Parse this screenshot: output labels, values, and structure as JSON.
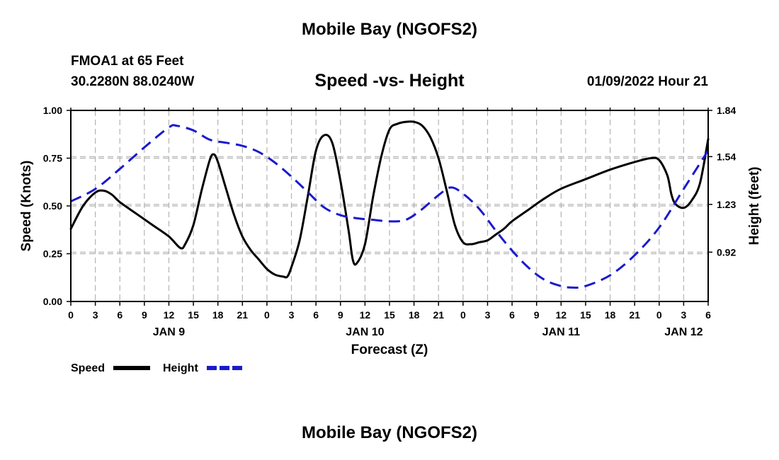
{
  "header": {
    "title": "Mobile Bay (NGOFS2)",
    "station": "FMOA1 at 65 Feet",
    "coords": "30.2280N  88.0240W",
    "timestamp": "01/09/2022 Hour 21",
    "footer_title": "Mobile Bay (NGOFS2)"
  },
  "chart_data": {
    "type": "line",
    "title": "Speed -vs- Height",
    "xlabel": "Forecast (Z)",
    "ylabel": "Speed (Knots)",
    "y2label": "Height (feet)",
    "xlim": [
      0,
      78
    ],
    "ylim": [
      0,
      1
    ],
    "y2lim": [
      0.6,
      1.84
    ],
    "grid": true,
    "legend_position": "bottom-left",
    "x_ticks": [
      0,
      3,
      6,
      9,
      12,
      15,
      18,
      21,
      24,
      27,
      30,
      33,
      36,
      39,
      42,
      45,
      48,
      51,
      54,
      57,
      60,
      63,
      66,
      69,
      72,
      75,
      78
    ],
    "x_tick_labels": [
      "0",
      "3",
      "6",
      "9",
      "12",
      "15",
      "18",
      "21",
      "0",
      "3",
      "6",
      "9",
      "12",
      "15",
      "18",
      "21",
      "0",
      "3",
      "6",
      "9",
      "12",
      "15",
      "18",
      "21",
      "0",
      "3",
      "6"
    ],
    "y_ticks": [
      0,
      0.25,
      0.5,
      0.75,
      1.0
    ],
    "y_tick_labels": [
      "0.00",
      "0.25",
      "0.50",
      "0.75",
      "1.00"
    ],
    "y2_ticks": [
      0.92,
      1.23,
      1.54,
      1.84
    ],
    "y2_tick_labels": [
      "0.92",
      "1.23",
      "1.54",
      "1.84"
    ],
    "day_labels": [
      {
        "x": 12,
        "label": "JAN 9"
      },
      {
        "x": 36,
        "label": "JAN 10"
      },
      {
        "x": 60,
        "label": "JAN 11"
      },
      {
        "x": 75,
        "label": "JAN 12"
      }
    ],
    "series": [
      {
        "name": "Speed",
        "axis": "left",
        "color": "#000000",
        "style": "solid",
        "x": [
          0,
          1.5,
          3,
          4,
          5,
          6,
          8,
          10,
          12,
          13.4,
          14,
          15,
          16,
          17,
          17.5,
          18,
          19,
          20,
          21,
          22,
          23,
          24,
          25,
          26,
          26.5,
          27,
          28,
          29,
          30,
          31,
          32,
          33,
          34,
          34.5,
          35,
          36,
          37,
          38,
          39,
          40,
          41,
          42,
          43,
          44,
          45,
          46,
          47,
          48,
          49,
          50,
          51,
          52,
          53,
          54,
          56,
          58,
          60,
          63,
          66,
          69,
          71,
          72,
          73,
          73.5,
          74,
          75,
          76,
          77,
          78
        ],
        "y": [
          0.38,
          0.5,
          0.57,
          0.58,
          0.56,
          0.52,
          0.46,
          0.4,
          0.34,
          0.28,
          0.3,
          0.4,
          0.58,
          0.74,
          0.77,
          0.73,
          0.59,
          0.45,
          0.34,
          0.27,
          0.22,
          0.17,
          0.14,
          0.13,
          0.13,
          0.18,
          0.32,
          0.55,
          0.79,
          0.87,
          0.83,
          0.63,
          0.37,
          0.22,
          0.2,
          0.3,
          0.55,
          0.76,
          0.9,
          0.93,
          0.94,
          0.94,
          0.92,
          0.86,
          0.75,
          0.58,
          0.4,
          0.31,
          0.3,
          0.31,
          0.32,
          0.35,
          0.38,
          0.42,
          0.48,
          0.54,
          0.59,
          0.64,
          0.69,
          0.73,
          0.75,
          0.74,
          0.66,
          0.56,
          0.51,
          0.49,
          0.53,
          0.62,
          0.85
        ]
      },
      {
        "name": "Height",
        "axis": "right",
        "color": "#1a1acd",
        "style": "dashed",
        "x": [
          0,
          3,
          6,
          9,
          12,
          13,
          15,
          17,
          19,
          21,
          23,
          25,
          27,
          29,
          31,
          33,
          35,
          37,
          39,
          41,
          43,
          45,
          46.5,
          48,
          50,
          52,
          54,
          56,
          58,
          60,
          61.5,
          63,
          66,
          69,
          72,
          75,
          78
        ],
        "y": [
          1.25,
          1.33,
          1.46,
          1.6,
          1.73,
          1.74,
          1.71,
          1.65,
          1.63,
          1.61,
          1.57,
          1.5,
          1.41,
          1.31,
          1.21,
          1.16,
          1.14,
          1.13,
          1.12,
          1.13,
          1.2,
          1.29,
          1.34,
          1.3,
          1.2,
          1.06,
          0.93,
          0.82,
          0.74,
          0.7,
          0.69,
          0.7,
          0.77,
          0.9,
          1.08,
          1.33,
          1.58
        ]
      }
    ]
  }
}
